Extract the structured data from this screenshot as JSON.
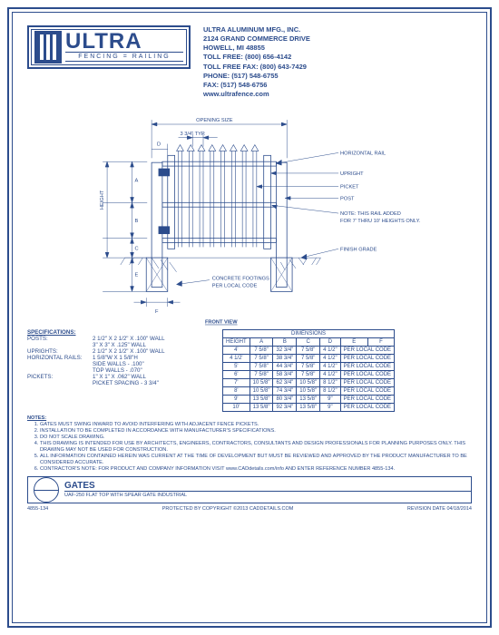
{
  "palette": {
    "primary": "#2c4c8c",
    "background": "#ffffff"
  },
  "logo": {
    "name": "ULTRA",
    "tagline": "FENCING = RAILING"
  },
  "company": {
    "name": "ULTRA ALUMINUM MFG., INC.",
    "addr1": "2124 GRAND COMMERCE DRIVE",
    "addr2": "HOWELL, MI 48855",
    "tollfree": "TOLL FREE: (800) 656-4142",
    "tollfax": "TOLL FREE FAX: (800) 643-7429",
    "phone": "PHONE: (517) 548-6755",
    "fax": "FAX: (517) 548-6756",
    "web": "www.ultrafence.com"
  },
  "drawing": {
    "opening_label": "OPENING SIZE",
    "typ_label": "3 3/4\" TYP.",
    "height_label": "HEIGHT",
    "callouts": {
      "horizontal_rail": "HORIZONTAL RAIL",
      "upright": "UPRIGHT",
      "picket": "PICKET",
      "post": "POST",
      "rail_note": "NOTE: THIS RAIL ADDED\nFOR 7' THRU 10' HEIGHTS ONLY.",
      "finish_grade": "FINISH GRADE",
      "footings": "CONCRETE FOOTINGS\nPER LOCAL CODE"
    },
    "dim_letters": [
      "A",
      "B",
      "C",
      "D",
      "E",
      "F"
    ],
    "front_view": "FRONT VIEW"
  },
  "specifications": {
    "header": "SPECIFICATIONS:",
    "rows": [
      {
        "label": "POSTS:",
        "value": "2 1/2\" X 2 1/2\" X .100\" WALL"
      },
      {
        "label": "",
        "value": "3\" X 3\" X .125\" WALL"
      },
      {
        "label": "UPRIGHTS:",
        "value": "2 1/2\" X 2 1/2\" X .100\" WALL"
      },
      {
        "label": "HORIZONTAL RAILS:",
        "value": "1 5/8\"W X 1 5/8\"H"
      },
      {
        "label": "",
        "value": "SIDE WALLS - .100\""
      },
      {
        "label": "",
        "value": "TOP WALLS - .070\""
      },
      {
        "label": "PICKETS:",
        "value": "1\" X 1\" X .062\" WALL"
      },
      {
        "label": "",
        "value": "PICKET SPACING - 3 3/4\""
      }
    ]
  },
  "dimensions": {
    "title": "DIMENSIONS",
    "cols": [
      "HEIGHT",
      "A",
      "B",
      "C",
      "D",
      "E",
      "F"
    ],
    "rows": [
      [
        "4'",
        "7 5/8\"",
        "32 3/4\"",
        "7 5/8\"",
        "4 1/2\"",
        "PER LOCAL CODE",
        ""
      ],
      [
        "4 1/2'",
        "7 5/8\"",
        "38 3/4\"",
        "7 5/8\"",
        "4 1/2\"",
        "PER LOCAL CODE",
        ""
      ],
      [
        "5'",
        "7 5/8\"",
        "44 3/4\"",
        "7 5/8\"",
        "4 1/2\"",
        "PER LOCAL CODE",
        ""
      ],
      [
        "6'",
        "7 5/8\"",
        "58 3/4\"",
        "7 5/8\"",
        "4 1/2\"",
        "PER LOCAL CODE",
        ""
      ],
      [
        "7'",
        "10 5/8\"",
        "62 3/4\"",
        "10 5/8\"",
        "8 1/2\"",
        "PER LOCAL CODE",
        ""
      ],
      [
        "8'",
        "10 5/8\"",
        "74 3/4\"",
        "10 5/8\"",
        "8 1/2\"",
        "PER LOCAL CODE",
        ""
      ],
      [
        "9'",
        "13 5/8\"",
        "80 3/4\"",
        "13 5/8\"",
        "9\"",
        "PER LOCAL CODE",
        ""
      ],
      [
        "10'",
        "13 5/8\"",
        "92 3/4\"",
        "13 5/8\"",
        "9\"",
        "PER LOCAL CODE",
        ""
      ]
    ]
  },
  "notes": {
    "header": "NOTES:",
    "items": [
      "GATES MUST SWING INWARD TO AVOID INTERFERING WITH ADJACENT FENCE PICKETS.",
      "INSTALLATION TO BE COMPLETED IN ACCORDANCE WITH MANUFACTURER'S SPECIFICATIONS.",
      "DO NOT SCALE DRAWING.",
      "THIS DRAWING IS INTENDED FOR USE BY ARCHITECTS, ENGINEERS, CONTRACTORS, CONSULTANTS AND DESIGN PROFESSIONALS FOR PLANNING PURPOSES ONLY. THIS DRAWING MAY NOT BE USED FOR CONSTRUCTION.",
      "ALL INFORMATION CONTAINED HEREIN WAS CURRENT AT THE TIME OF DEVELOPMENT BUT MUST BE REVIEWED AND APPROVED BY THE PRODUCT MANUFACTURER TO BE CONSIDERED ACCURATE.",
      "CONTRACTOR'S NOTE: FOR PRODUCT AND COMPANY INFORMATION VISIT www.CADdetails.com/info AND ENTER REFERENCE NUMBER 4855-134."
    ]
  },
  "title_block": {
    "main": "GATES",
    "sub": "UAF-250 FLAT TOP WITH SPEAR GATE INDUSTRIAL"
  },
  "footer": {
    "left": "4855-134",
    "center": "PROTECTED BY COPYRIGHT ©2013 CADDETAILS.COM",
    "right": "REVISION DATE 04/18/2014"
  }
}
